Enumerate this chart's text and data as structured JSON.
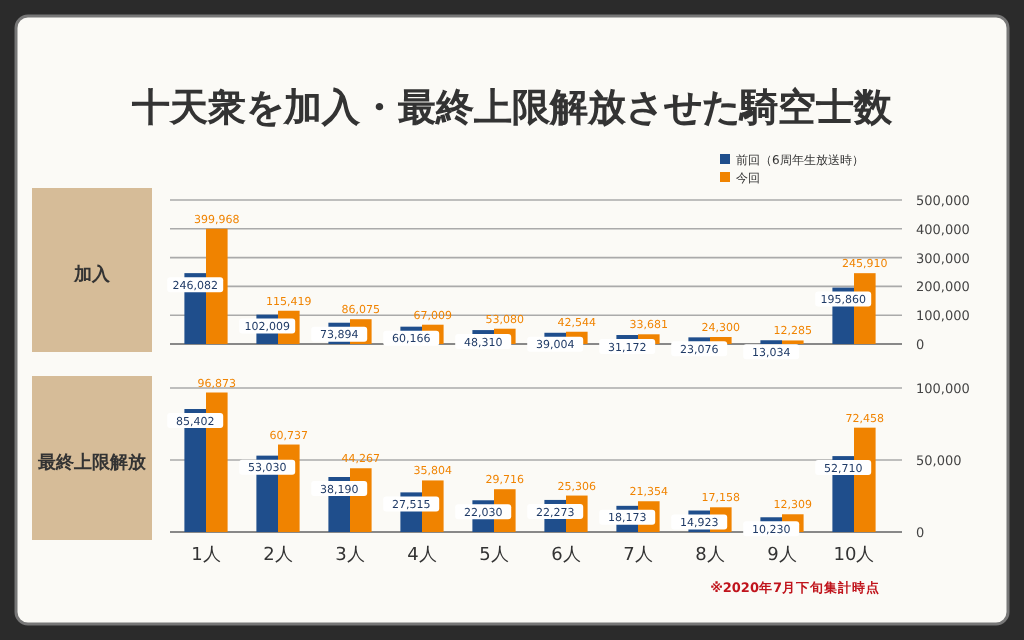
{
  "chart_data": [
    {
      "type": "bar",
      "title": "十天衆を加入・最終上限解放させた騎空士数",
      "ylabel": "加入",
      "categories": [
        null,
        null,
        null,
        null,
        null,
        null,
        null,
        null,
        null,
        null
      ],
      "series": [
        {
          "name": "前回（6周年生放送時）",
          "color": "#1f4e8c",
          "values": [
            246082,
            102009,
            73894,
            60166,
            48310,
            39004,
            31172,
            23076,
            13034,
            195860
          ],
          "value_labels": [
            "246,082",
            "102,009",
            "73,894",
            "60,166",
            "48,310",
            "39,004",
            "31,172",
            "23,076",
            "13,034",
            "195,860"
          ]
        },
        {
          "name": "今回",
          "color": "#f08300",
          "values": [
            399968,
            115419,
            86075,
            67009,
            53080,
            42544,
            33681,
            24300,
            12285,
            245910
          ],
          "value_labels": [
            "399,968",
            "115,419",
            "86,075",
            "67,009",
            "53,080",
            "42,544",
            "33,681",
            "24,300",
            "12,285",
            "245,910"
          ]
        }
      ],
      "ylim": [
        0,
        500000
      ],
      "yticks": [
        {
          "value": 0,
          "label": "0"
        },
        {
          "value": 100000,
          "label": "100,000"
        },
        {
          "value": 200000,
          "label": "200,000"
        },
        {
          "value": 300000,
          "label": "300,000"
        },
        {
          "value": 400000,
          "label": "400,000"
        },
        {
          "value": 500000,
          "label": "500,000"
        }
      ],
      "grid": "y",
      "legend": "top right",
      "tick_labels": "y"
    },
    {
      "type": "bar",
      "ylabel": "最終上限解放",
      "categories": [
        "1人",
        "2人",
        "3人",
        "4人",
        "5人",
        "6人",
        "7人",
        "8人",
        "9人",
        "10人"
      ],
      "series": [
        {
          "color": "#1f4e8c",
          "values": [
            85402,
            53030,
            38190,
            27515,
            22030,
            22273,
            18173,
            14923,
            10230,
            52710
          ],
          "value_labels": [
            "85,402",
            "53,030",
            "38,190",
            "27,515",
            "22,030",
            "22,273",
            "18,173",
            "14,923",
            "10,230",
            "52,710"
          ]
        },
        {
          "color": "#f08300",
          "values": [
            96873,
            60737,
            44267,
            35804,
            29716,
            25306,
            21354,
            17158,
            12309,
            72458
          ],
          "value_labels": [
            "96,873",
            "60,737",
            "44,267",
            "35,804",
            "29,716",
            "25,306",
            "21,354",
            "17,158",
            "12,309",
            "72,458"
          ]
        }
      ],
      "ylim": [
        0,
        100000
      ],
      "yticks": [
        {
          "value": 0,
          "label": "0"
        },
        {
          "value": 50000,
          "label": "50,000"
        },
        {
          "value": 100000,
          "label": "100,000"
        }
      ],
      "grid": "y",
      "annotations": [
        "※2020年7月下旬集計時点"
      ]
    }
  ]
}
